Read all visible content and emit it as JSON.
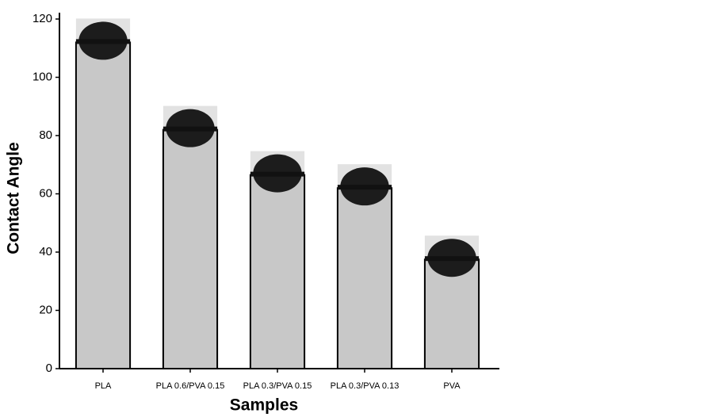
{
  "chart_data": {
    "type": "bar",
    "categories": [
      "PLA",
      "PLA 0.6/PVA 0.15",
      "PLA 0.3/PVA 0.15",
      "PLA 0.3/PVA 0.13",
      "PVA"
    ],
    "values": [
      112,
      82,
      66.5,
      62,
      37.5
    ],
    "color": "#c8c8c8",
    "x_label": "Samples",
    "y_label": "Contact Angle",
    "ylim": [
      0,
      120
    ],
    "yticks": [
      0,
      20,
      40,
      60,
      80,
      100,
      120
    ],
    "grid": false
  }
}
